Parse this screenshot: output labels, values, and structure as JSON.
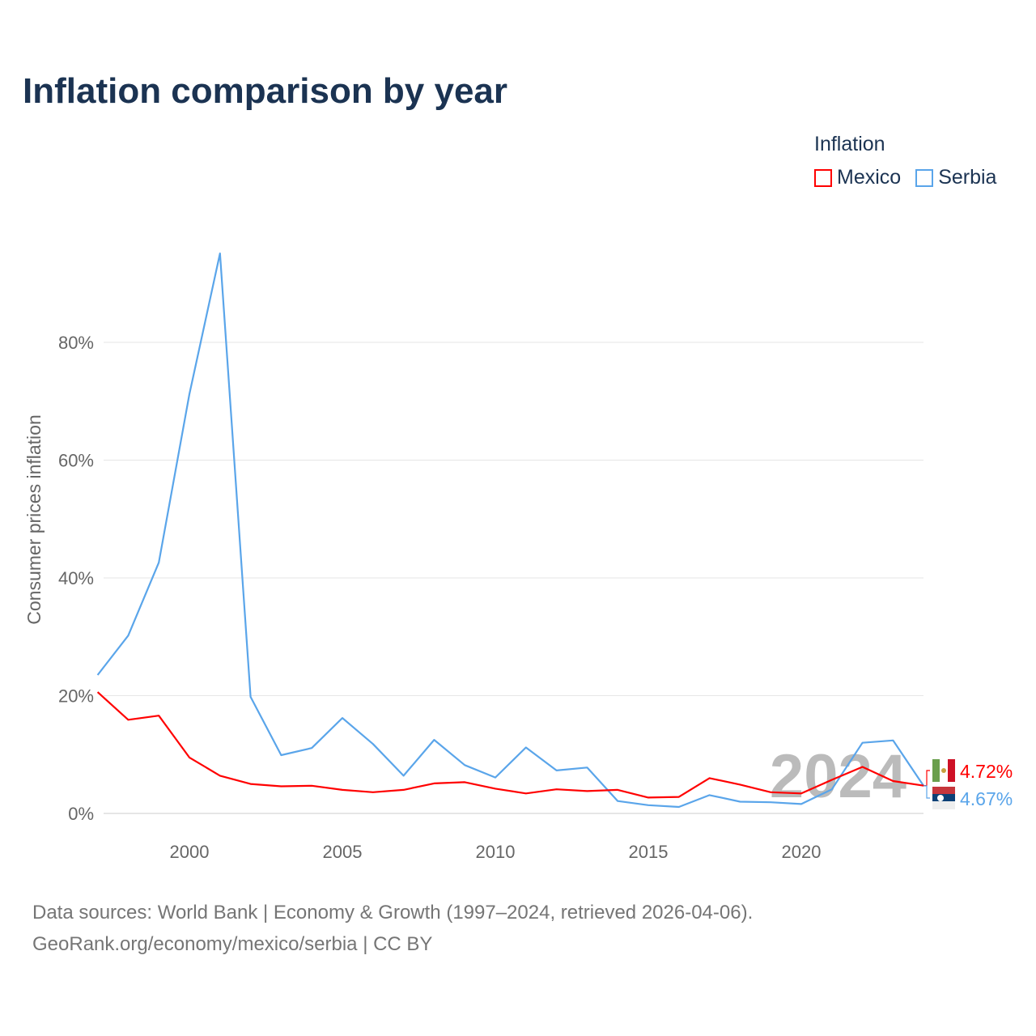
{
  "title": "Inflation comparison by year",
  "legend": {
    "title": "Inflation",
    "items": [
      {
        "label": "Mexico",
        "color": "#ff0000"
      },
      {
        "label": "Serbia",
        "color": "#5aa5ea"
      }
    ]
  },
  "footer": {
    "line1": "Data sources: World Bank | Economy & Growth (1997–2024, retrieved 2026-04-06).",
    "line2": "GeoRank.org/economy/mexico/serbia | CC BY"
  },
  "chart_data": {
    "type": "line",
    "title": "Inflation comparison by year",
    "xlabel": "",
    "ylabel": "Consumer prices inflation",
    "x": [
      1997,
      1998,
      1999,
      2000,
      2001,
      2002,
      2003,
      2004,
      2005,
      2006,
      2007,
      2008,
      2009,
      2010,
      2011,
      2012,
      2013,
      2014,
      2015,
      2016,
      2017,
      2018,
      2019,
      2020,
      2021,
      2022,
      2023,
      2024
    ],
    "xlim": [
      1997,
      2024
    ],
    "ylim": [
      -3,
      100
    ],
    "xticks": [
      "2000",
      "2005",
      "2010",
      "2015",
      "2020"
    ],
    "yticks": [
      "0%",
      "20%",
      "40%",
      "60%",
      "80%"
    ],
    "grid": true,
    "year_watermark": "2024",
    "series": [
      {
        "name": "Mexico",
        "color": "#ff0000",
        "end_label": "4.72%",
        "values": [
          20.6,
          15.9,
          16.6,
          9.5,
          6.4,
          5.0,
          4.6,
          4.7,
          4.0,
          3.6,
          4.0,
          5.1,
          5.3,
          4.2,
          3.4,
          4.1,
          3.8,
          4.0,
          2.7,
          2.8,
          6.0,
          4.9,
          3.6,
          3.4,
          5.7,
          7.9,
          5.5,
          4.72
        ]
      },
      {
        "name": "Serbia",
        "color": "#5aa5ea",
        "end_label": "4.67%",
        "values": [
          23.5,
          30.2,
          42.6,
          71.2,
          95.1,
          19.8,
          9.9,
          11.1,
          16.2,
          11.8,
          6.4,
          12.5,
          8.2,
          6.1,
          11.2,
          7.3,
          7.8,
          2.1,
          1.4,
          1.1,
          3.1,
          2.0,
          1.9,
          1.6,
          4.1,
          12.0,
          12.4,
          4.67
        ]
      }
    ]
  }
}
